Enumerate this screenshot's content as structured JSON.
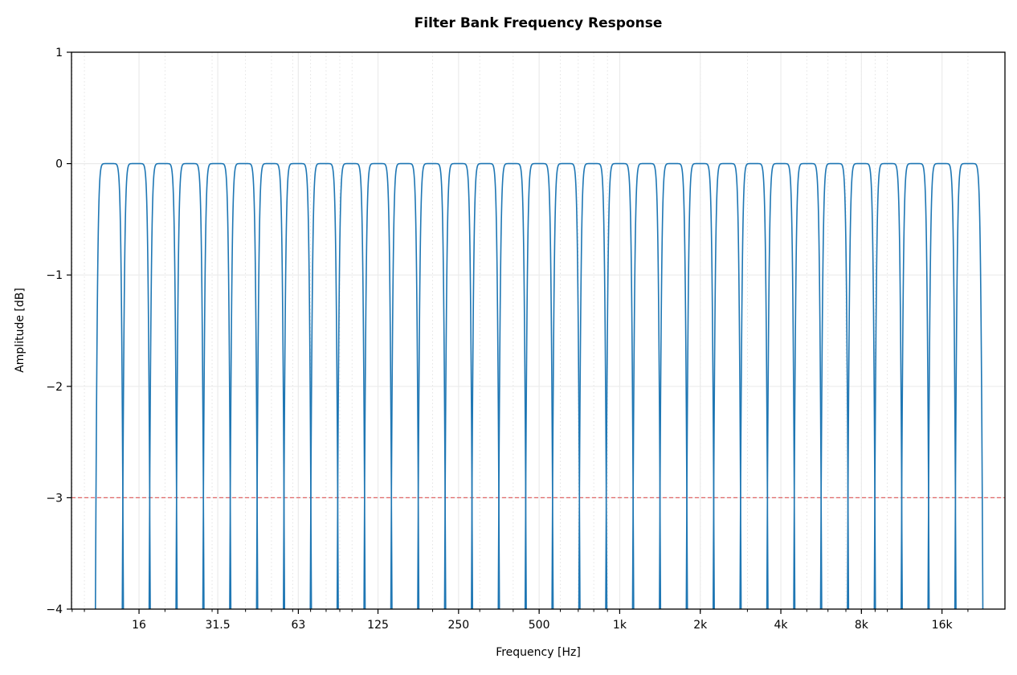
{
  "chart_data": {
    "type": "line",
    "title": "Filter Bank Frequency Response",
    "xlabel": "Frequency [Hz]",
    "ylabel": "Amplitude [dB]",
    "x_scale": "log",
    "xlim": [
      8.95,
      27500
    ],
    "ylim": [
      -4,
      1
    ],
    "x_ticks": [
      16,
      31.5,
      63,
      125,
      250,
      500,
      1000,
      2000,
      4000,
      8000,
      16000
    ],
    "x_tick_labels": [
      "16",
      "31.5",
      "63",
      "125",
      "250",
      "500",
      "1k",
      "2k",
      "4k",
      "8k",
      "16k"
    ],
    "y_ticks": [
      1,
      0,
      -1,
      -2,
      -3,
      -4
    ],
    "y_tick_labels": [
      "1",
      "0",
      "−1",
      "−2",
      "−3",
      "−4"
    ],
    "grid": true,
    "bands": {
      "description_type": "one-third-octave",
      "center_frequencies": [
        12.5,
        16,
        20,
        25,
        31.5,
        40,
        50,
        63,
        80,
        100,
        125,
        160,
        200,
        250,
        315,
        400,
        500,
        630,
        800,
        1000,
        1250,
        1600,
        2000,
        2500,
        3150,
        4000,
        5000,
        6300,
        8000,
        10000,
        12500,
        16000,
        20000
      ],
      "passband_level_db": 0,
      "edge_level_db": -3
    },
    "reference_line": {
      "y": -3,
      "style": "dashed",
      "color": "#e06666"
    },
    "series_color": "#1f77b4"
  }
}
